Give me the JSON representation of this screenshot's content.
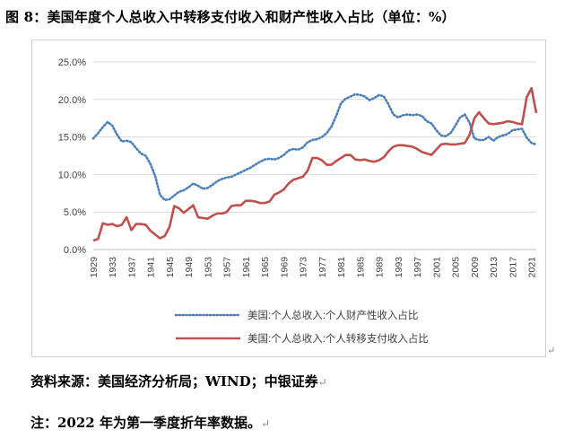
{
  "page": {
    "title": "图 8：美国年度个人总收入中转移支付收入和财产性收入占比（单位：%）",
    "source_note": "资料来源：美国经济分析局；WIND；中银证券",
    "footnote": "注：2022 年为第一季度折年率数据。",
    "paragraph_mark": "↵"
  },
  "chart_data": {
    "type": "line",
    "title": "",
    "xlabel": "",
    "ylabel": "",
    "ylim": [
      0,
      25
    ],
    "ytick_values": [
      0,
      5,
      10,
      15,
      20,
      25
    ],
    "ytick_labels": [
      "0.0%",
      "5.0%",
      "10.0%",
      "15.0%",
      "20.0%",
      "25.0%"
    ],
    "xtick_labels": [
      "1929",
      "1933",
      "1937",
      "1941",
      "1945",
      "1949",
      "1953",
      "1957",
      "1961",
      "1965",
      "1969",
      "1973",
      "1977",
      "1981",
      "1985",
      "1989",
      "1993",
      "1997",
      "2001",
      "2005",
      "2009",
      "2013",
      "2017",
      "2021"
    ],
    "grid": true,
    "legend_position": "bottom",
    "x": [
      1929,
      1930,
      1931,
      1932,
      1933,
      1934,
      1935,
      1936,
      1937,
      1938,
      1939,
      1940,
      1941,
      1942,
      1943,
      1944,
      1945,
      1946,
      1947,
      1948,
      1949,
      1950,
      1951,
      1952,
      1953,
      1954,
      1955,
      1956,
      1957,
      1958,
      1959,
      1960,
      1961,
      1962,
      1963,
      1964,
      1965,
      1966,
      1967,
      1968,
      1969,
      1970,
      1971,
      1972,
      1973,
      1974,
      1975,
      1976,
      1977,
      1978,
      1979,
      1980,
      1981,
      1982,
      1983,
      1984,
      1985,
      1986,
      1987,
      1988,
      1989,
      1990,
      1991,
      1992,
      1993,
      1994,
      1995,
      1996,
      1997,
      1998,
      1999,
      2000,
      2001,
      2002,
      2003,
      2004,
      2005,
      2006,
      2007,
      2008,
      2009,
      2010,
      2011,
      2012,
      2013,
      2014,
      2015,
      2016,
      2017,
      2018,
      2019,
      2020,
      2021,
      2022
    ],
    "series": [
      {
        "name": "美国:个人总收入:个人财产性收入占比",
        "style": "dotted",
        "color": "#4a7ebb",
        "values": [
          14.8,
          15.5,
          16.3,
          17.0,
          16.5,
          15.3,
          14.4,
          14.5,
          14.3,
          13.5,
          12.8,
          12.5,
          11.4,
          9.8,
          7.3,
          6.6,
          6.7,
          7.2,
          7.7,
          7.9,
          8.3,
          8.8,
          8.5,
          8.1,
          8.2,
          8.6,
          9.1,
          9.4,
          9.6,
          9.7,
          10.0,
          10.3,
          10.6,
          10.9,
          11.3,
          11.7,
          12.0,
          12.1,
          12.0,
          12.2,
          12.6,
          13.2,
          13.4,
          13.3,
          13.6,
          14.3,
          14.6,
          14.7,
          15.0,
          15.5,
          16.4,
          17.8,
          19.5,
          20.1,
          20.4,
          20.7,
          20.6,
          20.4,
          19.9,
          20.2,
          20.6,
          20.4,
          19.3,
          18.0,
          17.6,
          17.9,
          18.0,
          17.9,
          18.0,
          17.8,
          17.1,
          16.8,
          15.9,
          15.2,
          15.1,
          15.5,
          16.5,
          17.6,
          18.0,
          16.9,
          14.8,
          14.6,
          14.6,
          15.0,
          14.5,
          15.0,
          15.2,
          15.4,
          15.9,
          16.0,
          16.1,
          14.9,
          14.2,
          14.0
        ]
      },
      {
        "name": "美国:个人总收入:个人转移支付收入占比",
        "style": "solid",
        "color": "#c0504d",
        "values": [
          1.2,
          1.4,
          3.5,
          3.3,
          3.4,
          3.1,
          3.3,
          4.3,
          2.6,
          3.4,
          3.4,
          3.3,
          2.5,
          2.0,
          1.5,
          1.8,
          3.0,
          5.8,
          5.5,
          4.9,
          5.4,
          5.9,
          4.3,
          4.2,
          4.1,
          4.5,
          4.8,
          4.8,
          5.0,
          5.8,
          5.9,
          5.9,
          6.5,
          6.5,
          6.4,
          6.2,
          6.2,
          6.4,
          7.3,
          7.6,
          8.0,
          8.8,
          9.3,
          9.5,
          9.7,
          10.5,
          12.2,
          12.2,
          11.9,
          11.3,
          11.3,
          11.8,
          12.2,
          12.6,
          12.6,
          12.0,
          11.9,
          12.0,
          11.8,
          11.7,
          11.9,
          12.3,
          13.1,
          13.7,
          13.9,
          13.9,
          13.8,
          13.7,
          13.4,
          13.0,
          12.8,
          12.6,
          13.3,
          14.0,
          14.1,
          14.0,
          14.0,
          14.1,
          14.2,
          15.3,
          17.5,
          18.3,
          17.5,
          16.8,
          16.7,
          16.8,
          16.9,
          17.1,
          17.0,
          16.8,
          16.7,
          20.3,
          21.5,
          18.2
        ]
      }
    ]
  }
}
